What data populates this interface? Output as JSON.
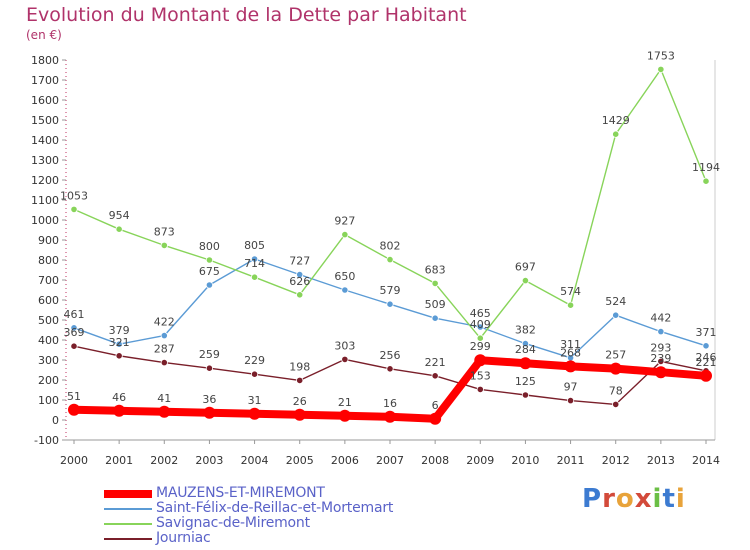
{
  "header": {
    "title": "Evolution du Montant de la Dette par Habitant",
    "unit": "(en €)"
  },
  "logo": {
    "text": "Proxiti"
  },
  "chart_data": {
    "type": "line",
    "title": "Evolution du Montant de la Dette par Habitant",
    "ylabel": "(en €)",
    "xlabel": "",
    "x": [
      2000,
      2001,
      2002,
      2003,
      2004,
      2005,
      2006,
      2007,
      2008,
      2009,
      2010,
      2011,
      2012,
      2013,
      2014
    ],
    "ylim": [
      -100,
      1800
    ],
    "yticks": [
      -100,
      0,
      100,
      200,
      300,
      400,
      500,
      600,
      700,
      800,
      900,
      1000,
      1100,
      1200,
      1300,
      1400,
      1500,
      1600,
      1700,
      1800
    ],
    "grid": false,
    "legend_position": "bottom-left",
    "series": [
      {
        "name": "MAUZENS-ET-MIREMONT",
        "color": "#ff0000",
        "values": [
          51,
          46,
          41,
          36,
          31,
          26,
          21,
          16,
          6,
          299,
          284,
          268,
          257,
          239,
          221
        ]
      },
      {
        "name": "Saint-Félix-de-Reillac-et-Mortemart",
        "color": "#5b9bd5",
        "values": [
          461,
          379,
          422,
          675,
          805,
          727,
          650,
          579,
          509,
          465,
          382,
          311,
          524,
          442,
          371
        ]
      },
      {
        "name": "Savignac-de-Miremont",
        "color": "#88d45a",
        "values": [
          1053,
          954,
          873,
          800,
          714,
          626,
          927,
          802,
          683,
          409,
          697,
          574,
          1429,
          1753,
          1194
        ]
      },
      {
        "name": "Journiac",
        "color": "#7a1f2a",
        "values": [
          369,
          321,
          287,
          259,
          229,
          198,
          303,
          256,
          221,
          153,
          125,
          97,
          78,
          293,
          246
        ]
      }
    ]
  }
}
